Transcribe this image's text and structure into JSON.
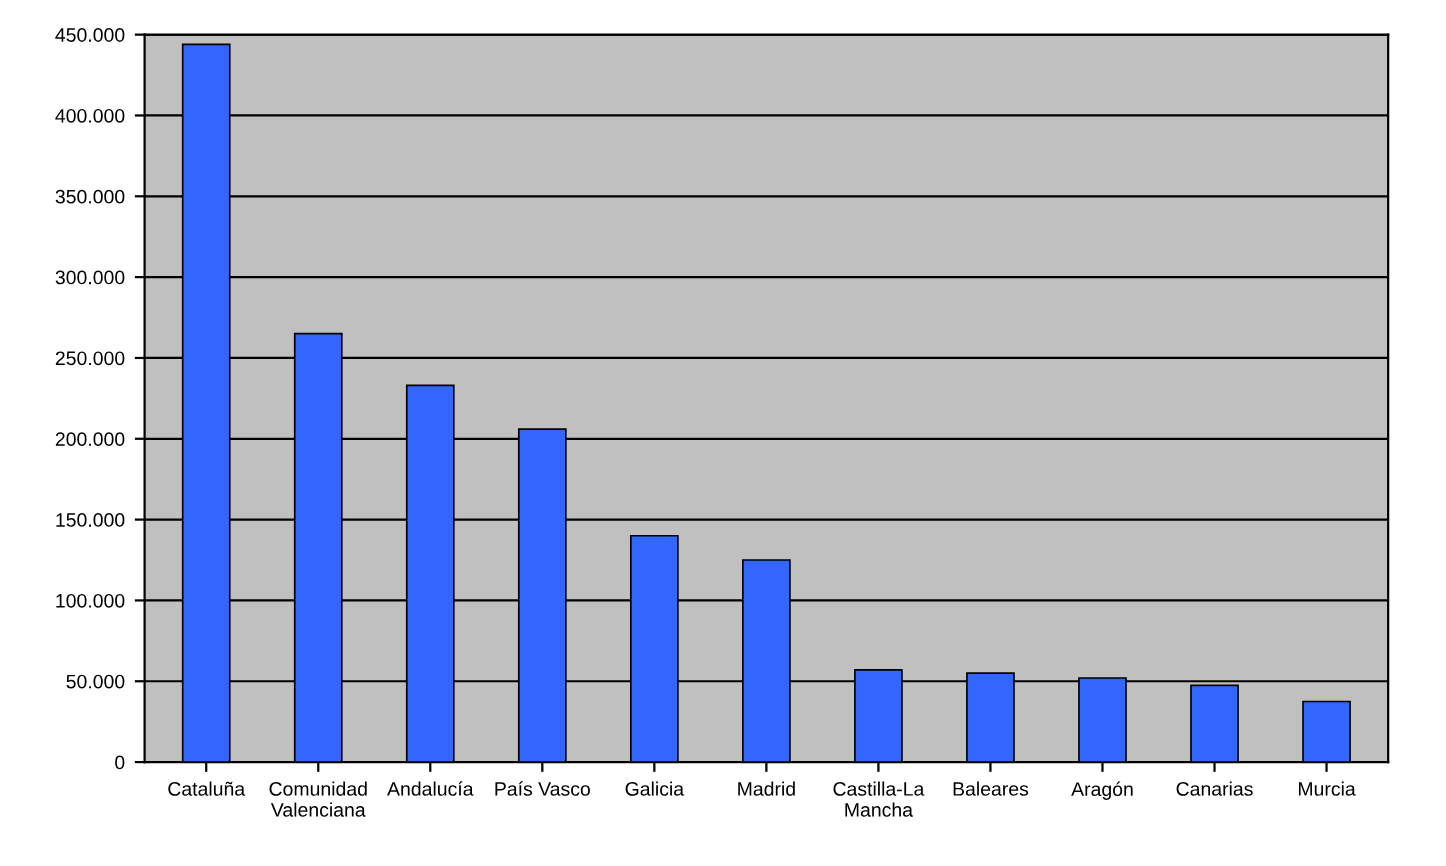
{
  "chart_data": {
    "type": "bar",
    "categories": [
      "Cataluña",
      "Comunidad\nValenciana",
      "Andalucía",
      "País Vasco",
      "Galicia",
      "Madrid",
      "Castilla-La\nMancha",
      "Baleares",
      "Aragón",
      "Canarias",
      "Murcia"
    ],
    "values": [
      444000,
      265000,
      233000,
      206000,
      140000,
      125000,
      57000,
      55000,
      52000,
      47500,
      37500
    ],
    "color": "#3366ff",
    "ylim": [
      0,
      450000
    ],
    "yticks": [
      0,
      {
        "value": 50000,
        "label": "50.000"
      },
      {
        "value": 100000,
        "label": "100.000"
      },
      {
        "value": 150000,
        "label": "150.000"
      },
      {
        "value": 200000,
        "label": "200.000"
      },
      {
        "value": 250000,
        "label": "250.000"
      },
      {
        "value": 300000,
        "label": "300.000"
      },
      {
        "value": 350000,
        "label": "350.000"
      },
      {
        "value": 400000,
        "label": "400.000"
      },
      {
        "value": 450000,
        "label": "450.000"
      }
    ],
    "grid": "y"
  }
}
